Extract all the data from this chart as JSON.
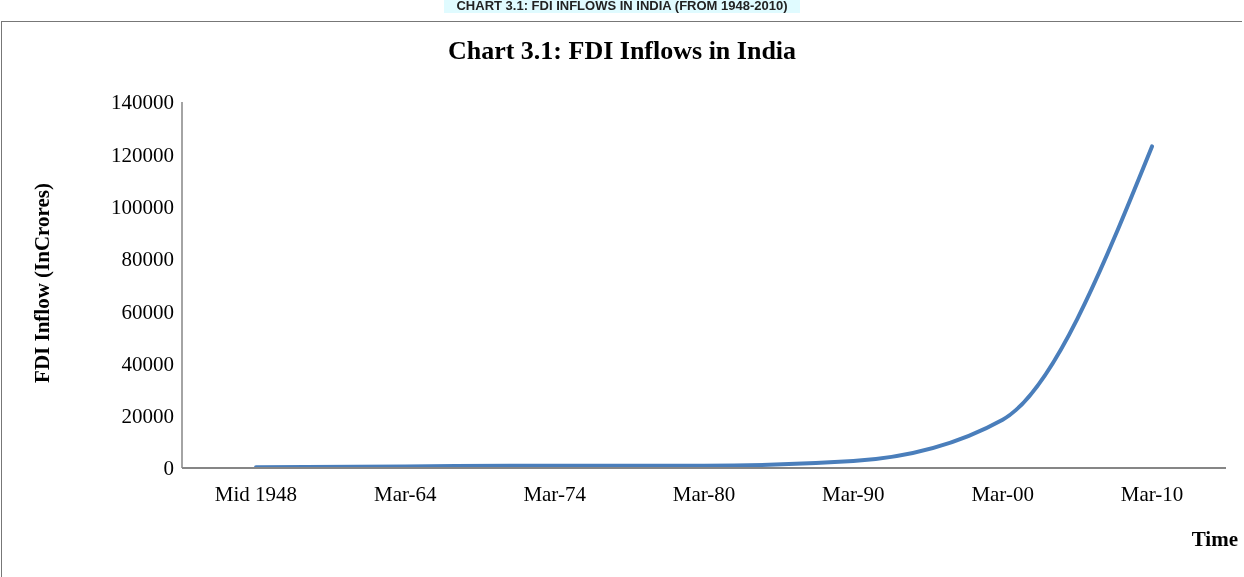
{
  "chart_data": {
    "type": "line",
    "title": "Chart 3.1: FDI Inflows in India",
    "annotations": [
      "CHART 3.1: FDI INFLOWS IN INDIA (FROM 1948-2010)"
    ],
    "ylabel": "FDI Inflow (InCrores)",
    "xlabel": "Time",
    "categories": [
      "Mid 1948",
      "Mar-64",
      "Mar-74",
      "Mar-80",
      "Mar-90",
      "Mar-00",
      "Mar-10"
    ],
    "series": [
      {
        "color": "#4a7ebb",
        "values": [
          300,
          600,
          900,
          900,
          2700,
          18500,
          123000
        ]
      }
    ],
    "ylim": [
      0,
      140000
    ],
    "yticks": [
      0,
      20000,
      40000,
      60000,
      80000,
      100000,
      120000,
      140000
    ],
    "grid": false,
    "legend": false,
    "marker": "none",
    "line_style": "solid"
  }
}
